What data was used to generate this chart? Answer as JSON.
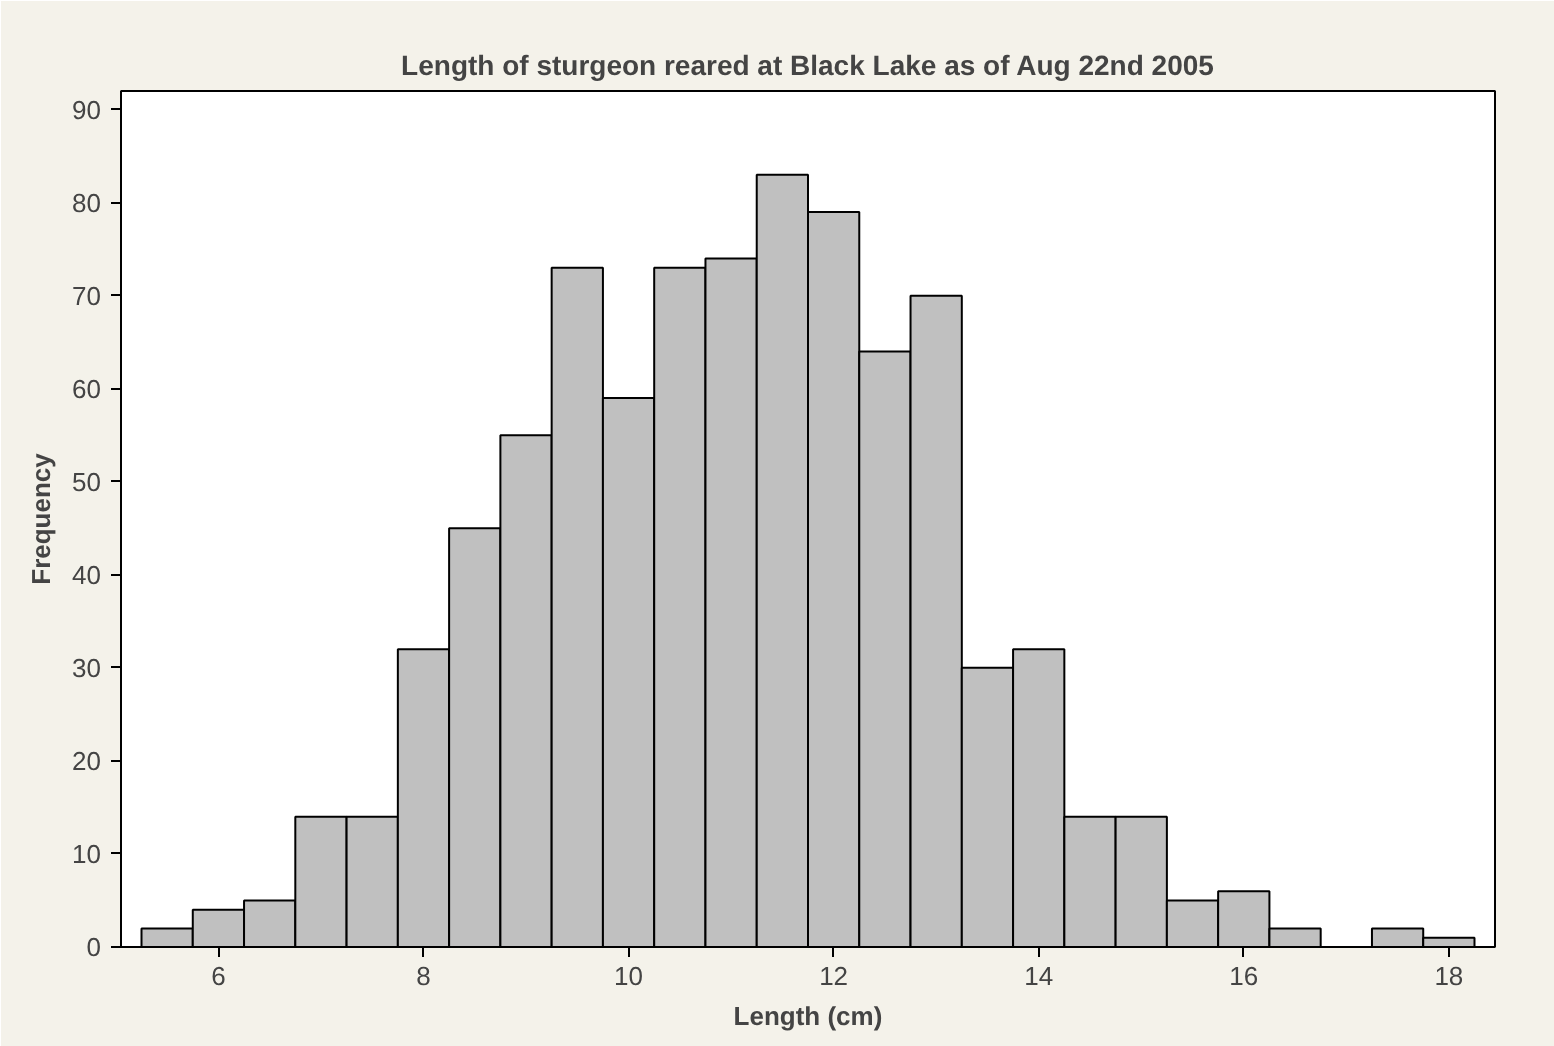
{
  "chart_data": {
    "type": "histogram",
    "title": "Length of sturgeon reared at Black Lake as of Aug 22nd 2005",
    "xlabel": "Length (cm)",
    "ylabel": "Frequency",
    "bins": [
      5.25,
      5.75,
      6.25,
      6.75,
      7.25,
      7.75,
      8.25,
      8.75,
      9.25,
      9.75,
      10.25,
      10.75,
      11.25,
      11.75,
      12.25,
      12.75,
      13.25,
      13.75,
      14.25,
      14.75,
      15.25,
      15.75,
      16.25,
      16.75,
      17.25,
      17.75,
      18.25
    ],
    "values": [
      2,
      4,
      5,
      14,
      14,
      32,
      45,
      55,
      73,
      59,
      73,
      74,
      83,
      79,
      64,
      70,
      30,
      32,
      14,
      14,
      5,
      6,
      2,
      0,
      2,
      1
    ],
    "color": "#c0c0c0",
    "xlim": [
      5.05,
      18.45
    ],
    "ylim": [
      0,
      92
    ],
    "xticks": [
      6,
      8,
      10,
      12,
      14,
      16,
      18
    ],
    "yticks": [
      0,
      10,
      20,
      30,
      40,
      50,
      60,
      70,
      80,
      90
    ],
    "grid": false
  }
}
